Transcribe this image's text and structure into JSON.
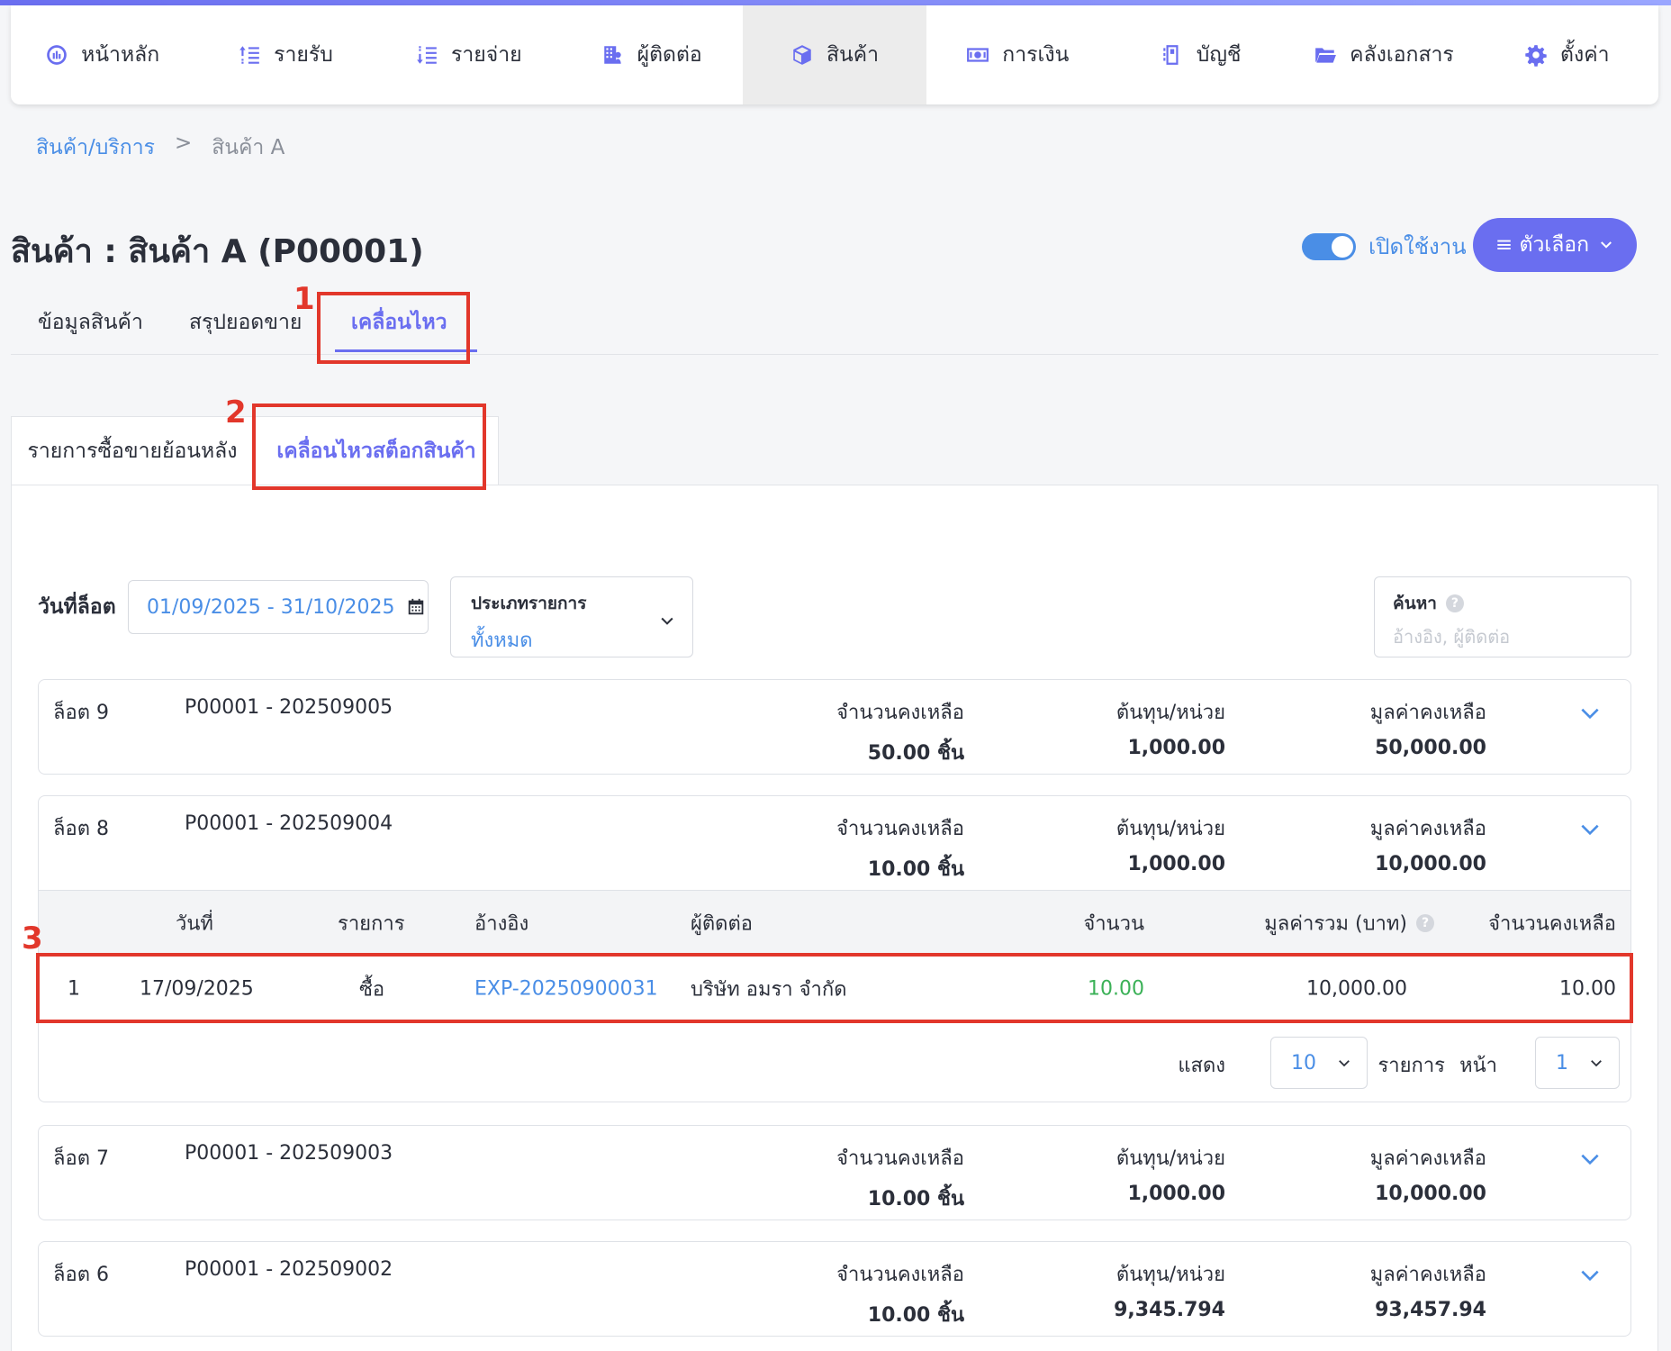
{
  "nav": {
    "items": [
      {
        "label": "หน้าหลัก",
        "icon": "dashboard-icon"
      },
      {
        "label": "รายรับ",
        "icon": "income-icon"
      },
      {
        "label": "รายจ่าย",
        "icon": "expense-icon"
      },
      {
        "label": "ผู้ติดต่อ",
        "icon": "contacts-icon"
      },
      {
        "label": "สินค้า",
        "icon": "box-icon",
        "active": true
      },
      {
        "label": "การเงิน",
        "icon": "money-icon"
      },
      {
        "label": "บัญชี",
        "icon": "ledger-icon"
      },
      {
        "label": "คลังเอกสาร",
        "icon": "folder-icon"
      },
      {
        "label": "ตั้งค่า",
        "icon": "gear-icon"
      }
    ]
  },
  "breadcrumb": {
    "parent": "สินค้า/บริการ",
    "separator": ">",
    "current": "สินค้า A"
  },
  "page": {
    "title": "สินค้า : สินค้า A (P00001)"
  },
  "status_toggle": {
    "label": "เปิดใช้งาน",
    "on": true
  },
  "options_button": {
    "label": "≡ ตัวเลือก"
  },
  "main_tabs": [
    "ข้อมูลสินค้า",
    "สรุปยอดขาย",
    "เคลื่อนไหว"
  ],
  "sub_tabs": [
    "รายการซื้อขายย้อนหลัง",
    "เคลื่อนไหวสต็อกสินค้า"
  ],
  "annotations": [
    "1",
    "2",
    "3"
  ],
  "filters": {
    "lot_date_label": "วันที่ล็อต",
    "date_range": "01/09/2025 - 31/10/2025",
    "type_label": "ประเภทรายการ",
    "type_value": "ทั้งหมด",
    "search_label": "ค้นหา",
    "search_placeholder": "อ้างอิง, ผู้ติดต่อ"
  },
  "stat_labels": {
    "qty": "จำนวนคงเหลือ",
    "cost": "ต้นทุน/หน่วย",
    "value": "มูลค่าคงเหลือ"
  },
  "lots": [
    {
      "name": "ล็อต 9",
      "code": "P00001 - 202509005",
      "qty": "50.00 ชิ้น",
      "cost": "1,000.00",
      "value": "50,000.00"
    },
    {
      "name": "ล็อต 8",
      "code": "P00001 - 202509004",
      "qty": "10.00 ชิ้น",
      "cost": "1,000.00",
      "value": "10,000.00"
    },
    {
      "name": "ล็อต 7",
      "code": "P00001 - 202509003",
      "qty": "10.00 ชิ้น",
      "cost": "1,000.00",
      "value": "10,000.00"
    },
    {
      "name": "ล็อต 6",
      "code": "P00001 - 202509002",
      "qty": "10.00 ชิ้น",
      "cost": "9,345.794",
      "value": "93,457.94"
    }
  ],
  "movement_table": {
    "headers": {
      "date": "วันที่",
      "type": "รายการ",
      "ref": "อ้างอิง",
      "contact": "ผู้ติดต่อ",
      "qty": "จำนวน",
      "total": "มูลค่ารวม (บาท)",
      "remain": "จำนวนคงเหลือ"
    },
    "rows": [
      {
        "no": "1",
        "date": "17/09/2025",
        "type": "ซื้อ",
        "ref": "EXP-20250900031",
        "contact": "บริษัท อมรา จำกัด",
        "qty": "10.00",
        "total": "10,000.00",
        "remain": "10.00"
      }
    ],
    "pager": {
      "show_label": "แสดง",
      "page_size": "10",
      "items_label": "รายการ",
      "page_label": "หน้า",
      "page": "1"
    }
  },
  "colors": {
    "accent": "#6a6ef0",
    "link": "#4a8ee6",
    "positive": "#3bb157",
    "annotation": "#e2372b"
  }
}
